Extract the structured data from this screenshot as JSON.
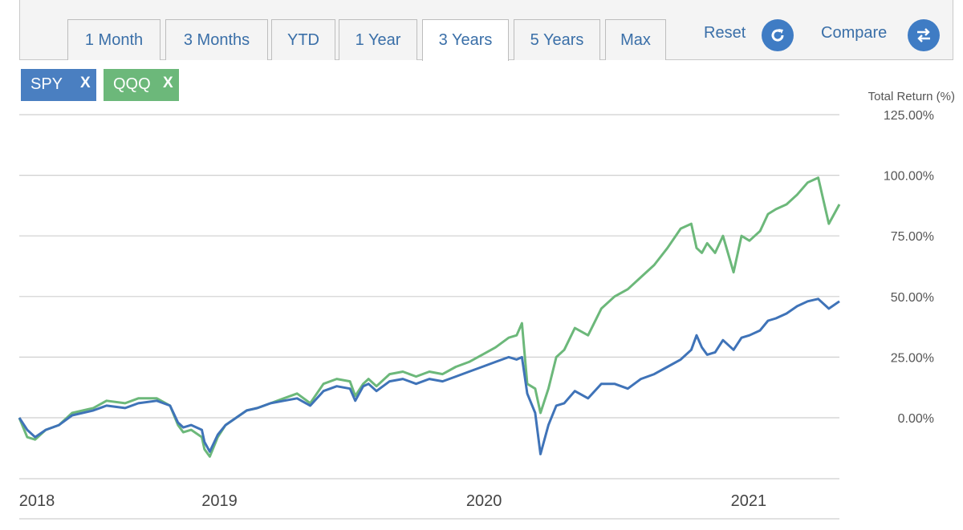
{
  "toolbar": {
    "tabs": [
      "1 Month",
      "3 Months",
      "YTD",
      "1 Year",
      "3 Years",
      "5 Years",
      "Max"
    ],
    "active_tab": "3 Years",
    "reset_label": "Reset",
    "compare_label": "Compare"
  },
  "chips": [
    {
      "label": "SPY",
      "close": "X",
      "color": "#4a7fc1"
    },
    {
      "label": "QQQ",
      "close": "X",
      "color": "#6cb87a"
    }
  ],
  "chart_data": {
    "type": "line",
    "ylabel": "Total Return (%)",
    "ylim": [
      -20,
      125
    ],
    "yticks": [
      "125.00%",
      "100.00%",
      "75.00%",
      "50.00%",
      "25.00%",
      "0.00%"
    ],
    "ytick_values": [
      125,
      100,
      75,
      50,
      25,
      0
    ],
    "xlim": [
      2018.0,
      2021.1
    ],
    "xticks": [
      "2018",
      "2019",
      "2020",
      "2021"
    ],
    "xtick_values": [
      2018.0,
      2018.69,
      2019.69,
      2020.69
    ],
    "series": [
      {
        "name": "SPY",
        "color": "#3f73b8",
        "x": [
          2018.0,
          2018.03,
          2018.06,
          2018.1,
          2018.15,
          2018.2,
          2018.28,
          2018.33,
          2018.4,
          2018.45,
          2018.52,
          2018.57,
          2018.6,
          2018.62,
          2018.65,
          2018.69,
          2018.7,
          2018.72,
          2018.75,
          2018.78,
          2018.82,
          2018.86,
          2018.9,
          2018.95,
          2019.0,
          2019.05,
          2019.1,
          2019.15,
          2019.2,
          2019.25,
          2019.27,
          2019.3,
          2019.32,
          2019.35,
          2019.4,
          2019.45,
          2019.5,
          2019.55,
          2019.6,
          2019.65,
          2019.7,
          2019.75,
          2019.8,
          2019.85,
          2019.88,
          2019.9,
          2019.92,
          2019.95,
          2019.97,
          2020.0,
          2020.03,
          2020.06,
          2020.1,
          2020.15,
          2020.2,
          2020.25,
          2020.3,
          2020.35,
          2020.4,
          2020.45,
          2020.5,
          2020.54,
          2020.56,
          2020.58,
          2020.6,
          2020.63,
          2020.66,
          2020.7,
          2020.73,
          2020.76,
          2020.8,
          2020.83,
          2020.86,
          2020.9,
          2020.94,
          2020.98,
          2021.02,
          2021.06,
          2021.1
        ],
        "values": [
          0,
          -5,
          -8,
          -5,
          -3,
          1,
          3,
          5,
          4,
          6,
          7,
          5,
          -2,
          -4,
          -3,
          -5,
          -10,
          -14,
          -7,
          -3,
          0,
          3,
          4,
          6,
          7,
          8,
          5,
          11,
          13,
          12,
          7,
          13,
          14,
          11,
          15,
          16,
          14,
          16,
          15,
          17,
          19,
          21,
          23,
          25,
          24,
          25,
          10,
          2,
          -15,
          -3,
          5,
          6,
          11,
          8,
          14,
          14,
          12,
          16,
          18,
          21,
          24,
          28,
          34,
          29,
          26,
          27,
          32,
          28,
          33,
          34,
          36,
          40,
          41,
          43,
          46,
          48,
          49,
          45,
          48
        ]
      },
      {
        "name": "QQQ",
        "color": "#6cb87a",
        "x": [
          2018.0,
          2018.03,
          2018.06,
          2018.1,
          2018.15,
          2018.2,
          2018.28,
          2018.33,
          2018.4,
          2018.45,
          2018.52,
          2018.57,
          2018.6,
          2018.62,
          2018.65,
          2018.69,
          2018.7,
          2018.72,
          2018.75,
          2018.78,
          2018.82,
          2018.86,
          2018.9,
          2018.95,
          2019.0,
          2019.05,
          2019.1,
          2019.15,
          2019.2,
          2019.25,
          2019.27,
          2019.3,
          2019.32,
          2019.35,
          2019.4,
          2019.45,
          2019.5,
          2019.55,
          2019.6,
          2019.65,
          2019.7,
          2019.75,
          2019.8,
          2019.85,
          2019.88,
          2019.9,
          2019.92,
          2019.95,
          2019.97,
          2020.0,
          2020.03,
          2020.06,
          2020.1,
          2020.15,
          2020.2,
          2020.25,
          2020.3,
          2020.35,
          2020.4,
          2020.45,
          2020.5,
          2020.54,
          2020.56,
          2020.58,
          2020.6,
          2020.63,
          2020.66,
          2020.7,
          2020.73,
          2020.76,
          2020.8,
          2020.83,
          2020.86,
          2020.9,
          2020.94,
          2020.98,
          2021.02,
          2021.06,
          2021.1
        ],
        "values": [
          0,
          -8,
          -9,
          -5,
          -3,
          2,
          4,
          7,
          6,
          8,
          8,
          5,
          -3,
          -6,
          -5,
          -8,
          -13,
          -16,
          -8,
          -3,
          0,
          3,
          4,
          6,
          8,
          10,
          6,
          14,
          16,
          15,
          9,
          14,
          16,
          13,
          18,
          19,
          17,
          19,
          18,
          21,
          23,
          26,
          29,
          33,
          34,
          39,
          14,
          12,
          2,
          12,
          25,
          28,
          37,
          34,
          45,
          50,
          53,
          58,
          63,
          70,
          78,
          80,
          70,
          68,
          72,
          68,
          75,
          60,
          75,
          73,
          77,
          84,
          86,
          88,
          92,
          97,
          99,
          80,
          88
        ]
      }
    ]
  }
}
